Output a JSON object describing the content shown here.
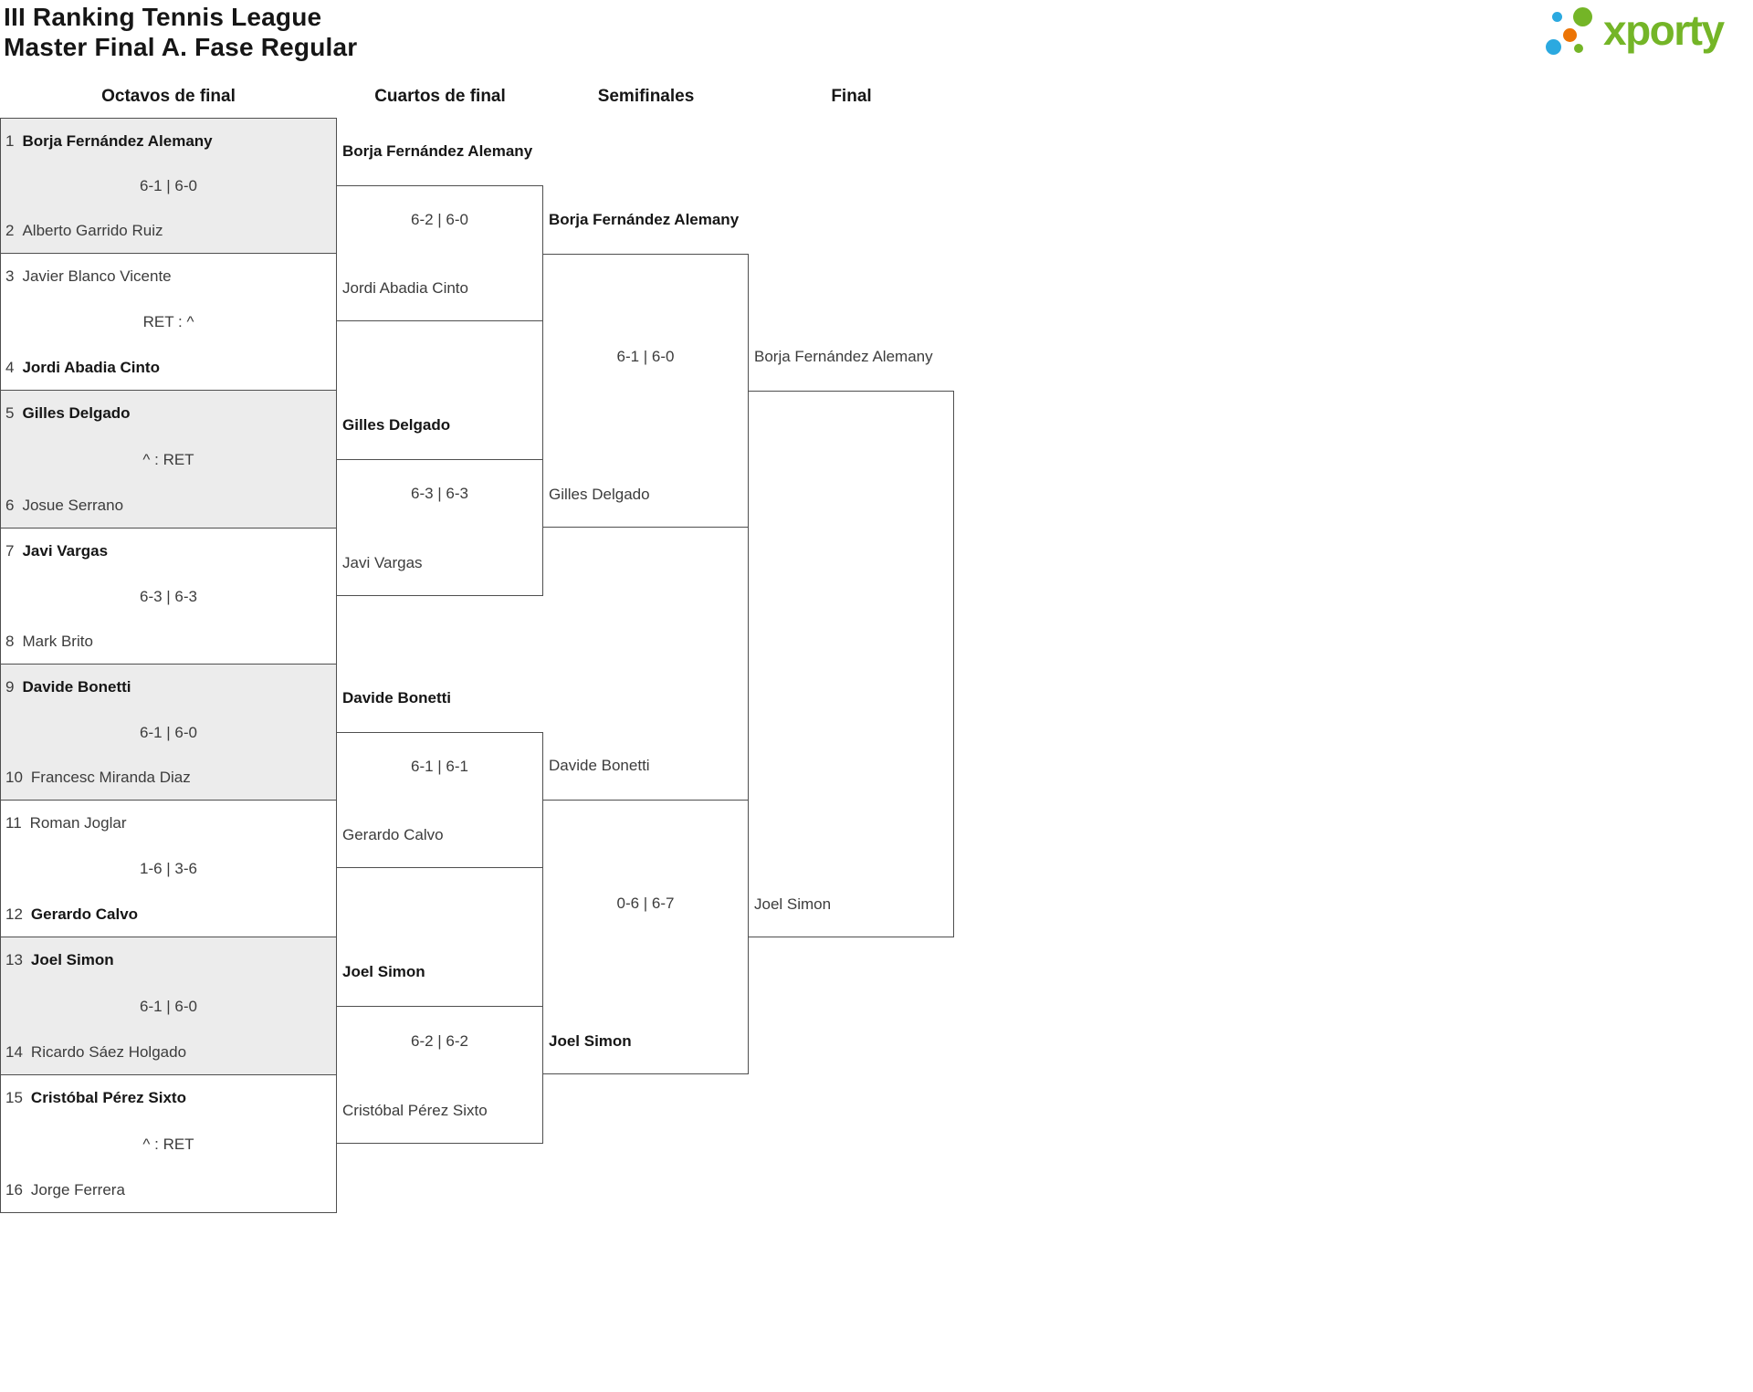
{
  "page": {
    "title_line1": "III Ranking Tennis League",
    "title_line2": "Master Final A. Fase Regular"
  },
  "logo": {
    "brand": "xporty"
  },
  "theme": {
    "ink": "#161616",
    "soft": "#3c3c3c",
    "line": "#4f4f4f",
    "shade": "#ececec",
    "green": "#74b527",
    "blue": "#2ba9e0",
    "orange": "#ec7404"
  },
  "rounds": [
    "Octavos de final",
    "Cuartos de final",
    "Semifinales",
    "Final"
  ],
  "bracket": {
    "round_of_16": [
      {
        "shaded": true,
        "p1": {
          "seed": "1",
          "name": "Borja Fernández Alemany",
          "winner": true
        },
        "score": "6-1 | 6-0",
        "p2": {
          "seed": "2",
          "name": "Alberto Garrido Ruiz",
          "winner": false
        }
      },
      {
        "shaded": false,
        "p1": {
          "seed": "3",
          "name": "Javier Blanco Vicente",
          "winner": false
        },
        "score": "RET : ^",
        "p2": {
          "seed": "4",
          "name": "Jordi Abadia Cinto",
          "winner": true
        }
      },
      {
        "shaded": true,
        "p1": {
          "seed": "5",
          "name": "Gilles Delgado",
          "winner": true
        },
        "score": "^ : RET",
        "p2": {
          "seed": "6",
          "name": "Josue Serrano",
          "winner": false
        }
      },
      {
        "shaded": false,
        "p1": {
          "seed": "7",
          "name": "Javi Vargas",
          "winner": true
        },
        "score": "6-3 | 6-3",
        "p2": {
          "seed": "8",
          "name": "Mark Brito",
          "winner": false
        }
      },
      {
        "shaded": true,
        "p1": {
          "seed": "9",
          "name": "Davide Bonetti",
          "winner": true
        },
        "score": "6-1 | 6-0",
        "p2": {
          "seed": "10",
          "name": "Francesc Miranda Diaz",
          "winner": false
        }
      },
      {
        "shaded": false,
        "p1": {
          "seed": "11",
          "name": "Roman Joglar",
          "winner": false
        },
        "score": "1-6 | 3-6",
        "p2": {
          "seed": "12",
          "name": "Gerardo Calvo",
          "winner": true
        }
      },
      {
        "shaded": true,
        "p1": {
          "seed": "13",
          "name": "Joel Simon",
          "winner": true
        },
        "score": "6-1 | 6-0",
        "p2": {
          "seed": "14",
          "name": "Ricardo Sáez Holgado",
          "winner": false
        }
      },
      {
        "shaded": false,
        "p1": {
          "seed": "15",
          "name": "Cristóbal Pérez Sixto",
          "winner": true
        },
        "score": "^ : RET",
        "p2": {
          "seed": "16",
          "name": "Jorge Ferrera",
          "winner": false
        }
      }
    ],
    "quarterfinals": [
      {
        "p1": {
          "name": "Borja Fernández Alemany",
          "winner": true
        },
        "score": "6-2 | 6-0",
        "p2": {
          "name": "Jordi Abadia Cinto",
          "winner": false
        }
      },
      {
        "p1": {
          "name": "Gilles Delgado",
          "winner": true
        },
        "score": "6-3 | 6-3",
        "p2": {
          "name": "Javi Vargas",
          "winner": false
        }
      },
      {
        "p1": {
          "name": "Davide Bonetti",
          "winner": true
        },
        "score": "6-1 | 6-1",
        "p2": {
          "name": "Gerardo Calvo",
          "winner": false
        }
      },
      {
        "p1": {
          "name": "Joel Simon",
          "winner": true
        },
        "score": "6-2 | 6-2",
        "p2": {
          "name": "Cristóbal Pérez Sixto",
          "winner": false
        }
      }
    ],
    "semifinals": [
      {
        "p1": {
          "name": "Borja Fernández Alemany",
          "winner": true
        },
        "score": "6-1 | 6-0",
        "p2": {
          "name": "Gilles Delgado",
          "winner": false
        }
      },
      {
        "p1": {
          "name": "Davide Bonetti",
          "winner": false
        },
        "score": "0-6 | 6-7",
        "p2": {
          "name": "Joel Simon",
          "winner": true
        }
      }
    ],
    "final": [
      {
        "p1": {
          "name": "Borja Fernández Alemany",
          "winner": false
        },
        "score": "",
        "p2": {
          "name": "Joel Simon",
          "winner": false
        }
      }
    ]
  }
}
